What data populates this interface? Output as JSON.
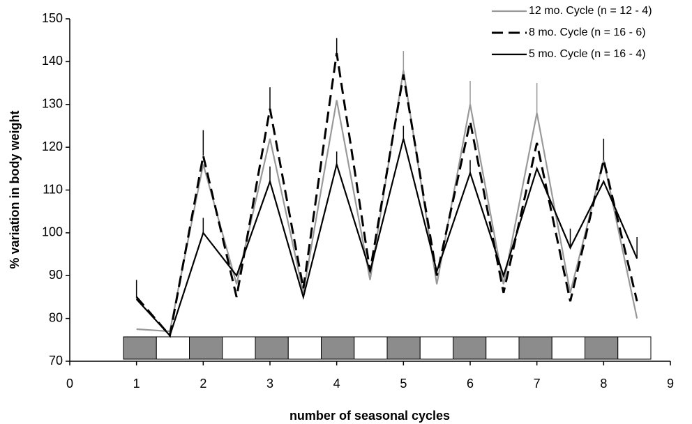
{
  "chart_data": {
    "type": "line",
    "x_label": "number of seasonal cycles",
    "y_label": "% variation in body weight",
    "xlim": [
      0,
      9
    ],
    "xticks": [
      0,
      1,
      2,
      3,
      4,
      5,
      6,
      7,
      8,
      9
    ],
    "ylim": [
      70,
      150
    ],
    "yticks": [
      70,
      80,
      90,
      100,
      110,
      120,
      130,
      140,
      150
    ],
    "legend": "top-right",
    "x": [
      1,
      1.5,
      2,
      2.5,
      3,
      3.5,
      4,
      4.5,
      5,
      5.5,
      6,
      6.5,
      7,
      7.5,
      8,
      8.5
    ],
    "series": [
      {
        "name": "12 mo. Cycle (n = 12 - 4)",
        "color": "#999999",
        "dash": "solid",
        "values": [
          77.5,
          77,
          116,
          88,
          122,
          86,
          131,
          89,
          138,
          88,
          130,
          88,
          128,
          86,
          117,
          80
        ],
        "errors": [
          null,
          null,
          null,
          null,
          null,
          null,
          null,
          null,
          4.5,
          null,
          5.5,
          null,
          7,
          null,
          null,
          null
        ]
      },
      {
        "name": "8 mo. Cycle (n = 16 - 6)",
        "color": "#000000",
        "dash": "dashed",
        "values": [
          85,
          76,
          118,
          85,
          129,
          87,
          142,
          91,
          137,
          90,
          126,
          86,
          121,
          84,
          117,
          84
        ],
        "errors": [
          4,
          null,
          6,
          null,
          5,
          null,
          3.5,
          null,
          null,
          null,
          null,
          null,
          null,
          null,
          5,
          null
        ]
      },
      {
        "name": "5 mo. Cycle (n = 16 - 4)",
        "color": "#000000",
        "dash": "solid",
        "values": [
          84.5,
          76,
          100,
          90,
          112,
          85,
          116,
          91,
          122,
          91,
          114,
          90,
          115,
          96.5,
          112,
          94
        ],
        "errors": [
          null,
          null,
          3.5,
          null,
          3.5,
          null,
          3,
          null,
          3,
          null,
          3,
          null,
          null,
          4.5,
          null,
          5
        ]
      }
    ]
  }
}
